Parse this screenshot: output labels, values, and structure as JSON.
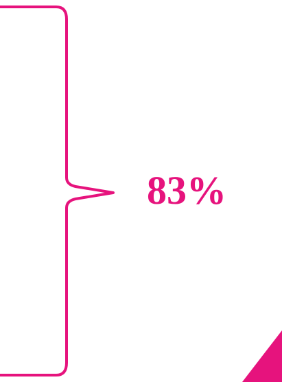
{
  "label": {
    "text": "83%"
  },
  "colors": {
    "accent": "#e6137d",
    "background": "#ffffff"
  },
  "icons": {
    "brace": "right-curly-brace",
    "corner_shape": "pink-triangle-wedge"
  }
}
